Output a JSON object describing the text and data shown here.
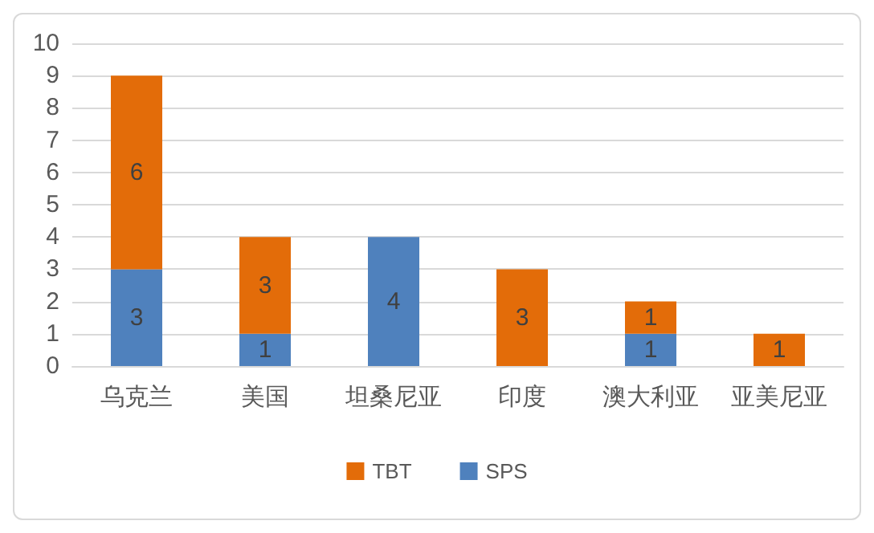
{
  "chart_data": {
    "type": "bar",
    "stacked": true,
    "categories": [
      "乌克兰",
      "美国",
      "坦桑尼亚",
      "印度",
      "澳大利亚",
      "亚美尼亚"
    ],
    "series": [
      {
        "name": "SPS",
        "color": "#4f81bd",
        "values": [
          3,
          1,
          4,
          null,
          1,
          null
        ]
      },
      {
        "name": "TBT",
        "color": "#e36c09",
        "values": [
          6,
          3,
          null,
          3,
          1,
          1
        ]
      }
    ],
    "ylim": [
      0,
      10
    ],
    "yticks": [
      0,
      1,
      2,
      3,
      4,
      5,
      6,
      7,
      8,
      9,
      10
    ],
    "grid": "y",
    "legend": "bottom",
    "data_labels": true
  }
}
